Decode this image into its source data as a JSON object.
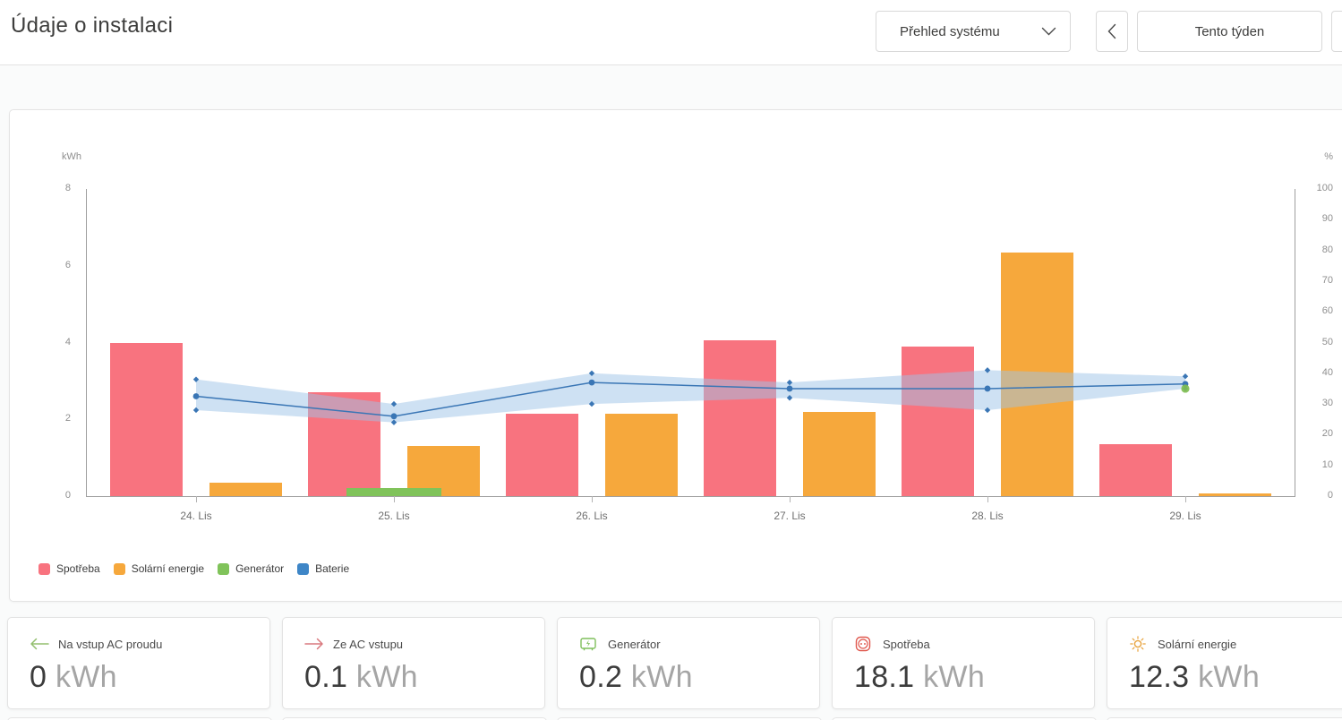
{
  "header": {
    "title": "Údaje o instalaci",
    "system_select_value": "Přehled systému",
    "period_label": "Tento týden",
    "icons": {
      "select_chevron": "chevron-down",
      "prev": "chevron-left"
    }
  },
  "chart_data": {
    "type": "bar",
    "title": "",
    "categories": [
      "24. Lis",
      "25. Lis",
      "26. Lis",
      "27. Lis",
      "28. Lis",
      "29. Lis"
    ],
    "left_axis": {
      "label": "kWh",
      "min": 0,
      "max": 8,
      "ticks": [
        0,
        2,
        4,
        6,
        8
      ]
    },
    "right_axis": {
      "label": "%",
      "min": 0,
      "max": 100,
      "ticks": [
        0,
        10,
        20,
        30,
        40,
        50,
        60,
        70,
        80,
        90,
        100
      ]
    },
    "grid": false,
    "legend_position": "bottom-left",
    "series": [
      {
        "name": "Spotřeba",
        "type": "bar",
        "axis": "left",
        "color": "#F8737F",
        "values": [
          4.0,
          2.7,
          2.15,
          4.05,
          3.9,
          1.35
        ]
      },
      {
        "name": "Solární energie",
        "type": "bar",
        "axis": "left",
        "color": "#F6A83C",
        "values": [
          0.35,
          1.3,
          2.15,
          2.2,
          6.35,
          0.07
        ]
      },
      {
        "name": "Generátor",
        "type": "bar",
        "axis": "left",
        "color": "#80C35A",
        "values": [
          0,
          0.2,
          0,
          0,
          0,
          0
        ]
      },
      {
        "name": "Baterie",
        "type": "line",
        "axis": "right",
        "color": "#3A76B5",
        "band_color": "#9DC4E8",
        "values": [
          32.5,
          26,
          37,
          35,
          35,
          36.5
        ],
        "band_high": [
          38,
          30,
          40,
          37,
          41,
          39
        ],
        "band_low": [
          28,
          24,
          30,
          32,
          28,
          35
        ]
      }
    ],
    "end_dot": {
      "series": "Generátor",
      "category_index": 5,
      "value": 35,
      "color": "#7FBE53"
    },
    "legend": [
      {
        "label": "Spotřeba",
        "color": "#F8737F"
      },
      {
        "label": "Solární energie",
        "color": "#F6A83C"
      },
      {
        "label": "Generátor",
        "color": "#80C35A"
      },
      {
        "label": "Baterie",
        "color": "#3E86C7"
      }
    ]
  },
  "stat_cards": [
    {
      "icon": "arrow-left",
      "icon_color": "#93BF6E",
      "label": "Na vstup AC proudu",
      "value": "0",
      "unit": "kWh"
    },
    {
      "icon": "arrow-right",
      "icon_color": "#D9797E",
      "label": "Ze AC vstupu",
      "value": "0.1",
      "unit": "kWh"
    },
    {
      "icon": "generator",
      "icon_color": "#7FBF5B",
      "label": "Generátor",
      "value": "0.2",
      "unit": "kWh"
    },
    {
      "icon": "socket",
      "icon_color": "#E0584E",
      "label": "Spotřeba",
      "value": "18.1",
      "unit": "kWh"
    },
    {
      "icon": "sun",
      "icon_color": "#E8A33D",
      "label": "Solární energie",
      "value": "12.3",
      "unit": "kWh"
    }
  ]
}
